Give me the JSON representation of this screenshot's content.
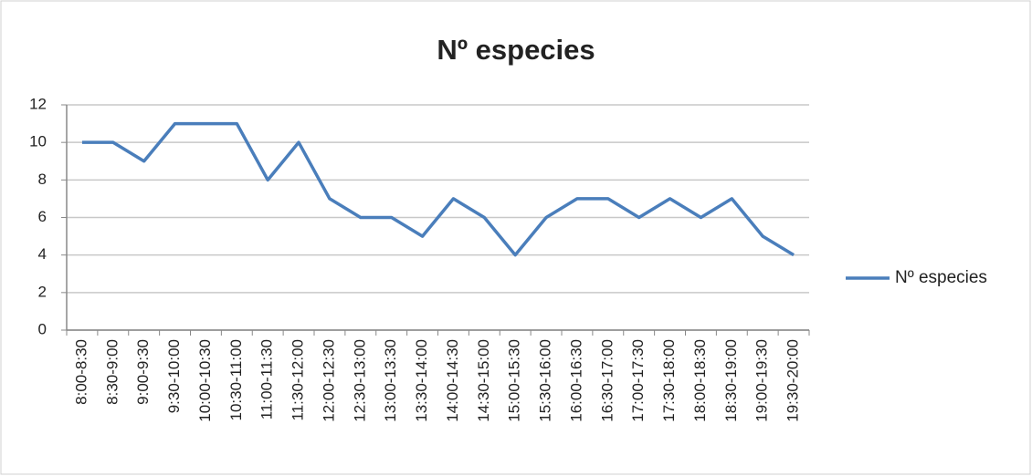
{
  "chart_data": {
    "type": "line",
    "title": "Nº especies",
    "categories": [
      "8:00-8:30",
      "8:30-9:00",
      "9:00-9:30",
      "9:30-10:00",
      "10:00-10:30",
      "10:30-11:00",
      "11:00-11:30",
      "11:30-12:00",
      "12:00-12:30",
      "12:30-13:00",
      "13:00-13:30",
      "13:30-14:00",
      "14:00-14:30",
      "14:30-15:00",
      "15:00-15:30",
      "15:30-16:00",
      "16:00-16:30",
      "16:30-17:00",
      "17:00-17:30",
      "17:30-18:00",
      "18:00-18:30",
      "18:30-19:00",
      "19:00-19:30",
      "19:30-20:00"
    ],
    "series": [
      {
        "name": "Nº especies",
        "color": "#4a7ebb",
        "values": [
          10,
          10,
          9,
          11,
          11,
          11,
          8,
          10,
          7,
          6,
          6,
          5,
          7,
          6,
          4,
          6,
          7,
          7,
          6,
          7,
          6,
          7,
          5,
          4
        ]
      }
    ],
    "ylim": [
      0,
      12
    ],
    "yticks": [
      0,
      2,
      4,
      6,
      8,
      10,
      12
    ],
    "grid": true,
    "legend": "right"
  }
}
